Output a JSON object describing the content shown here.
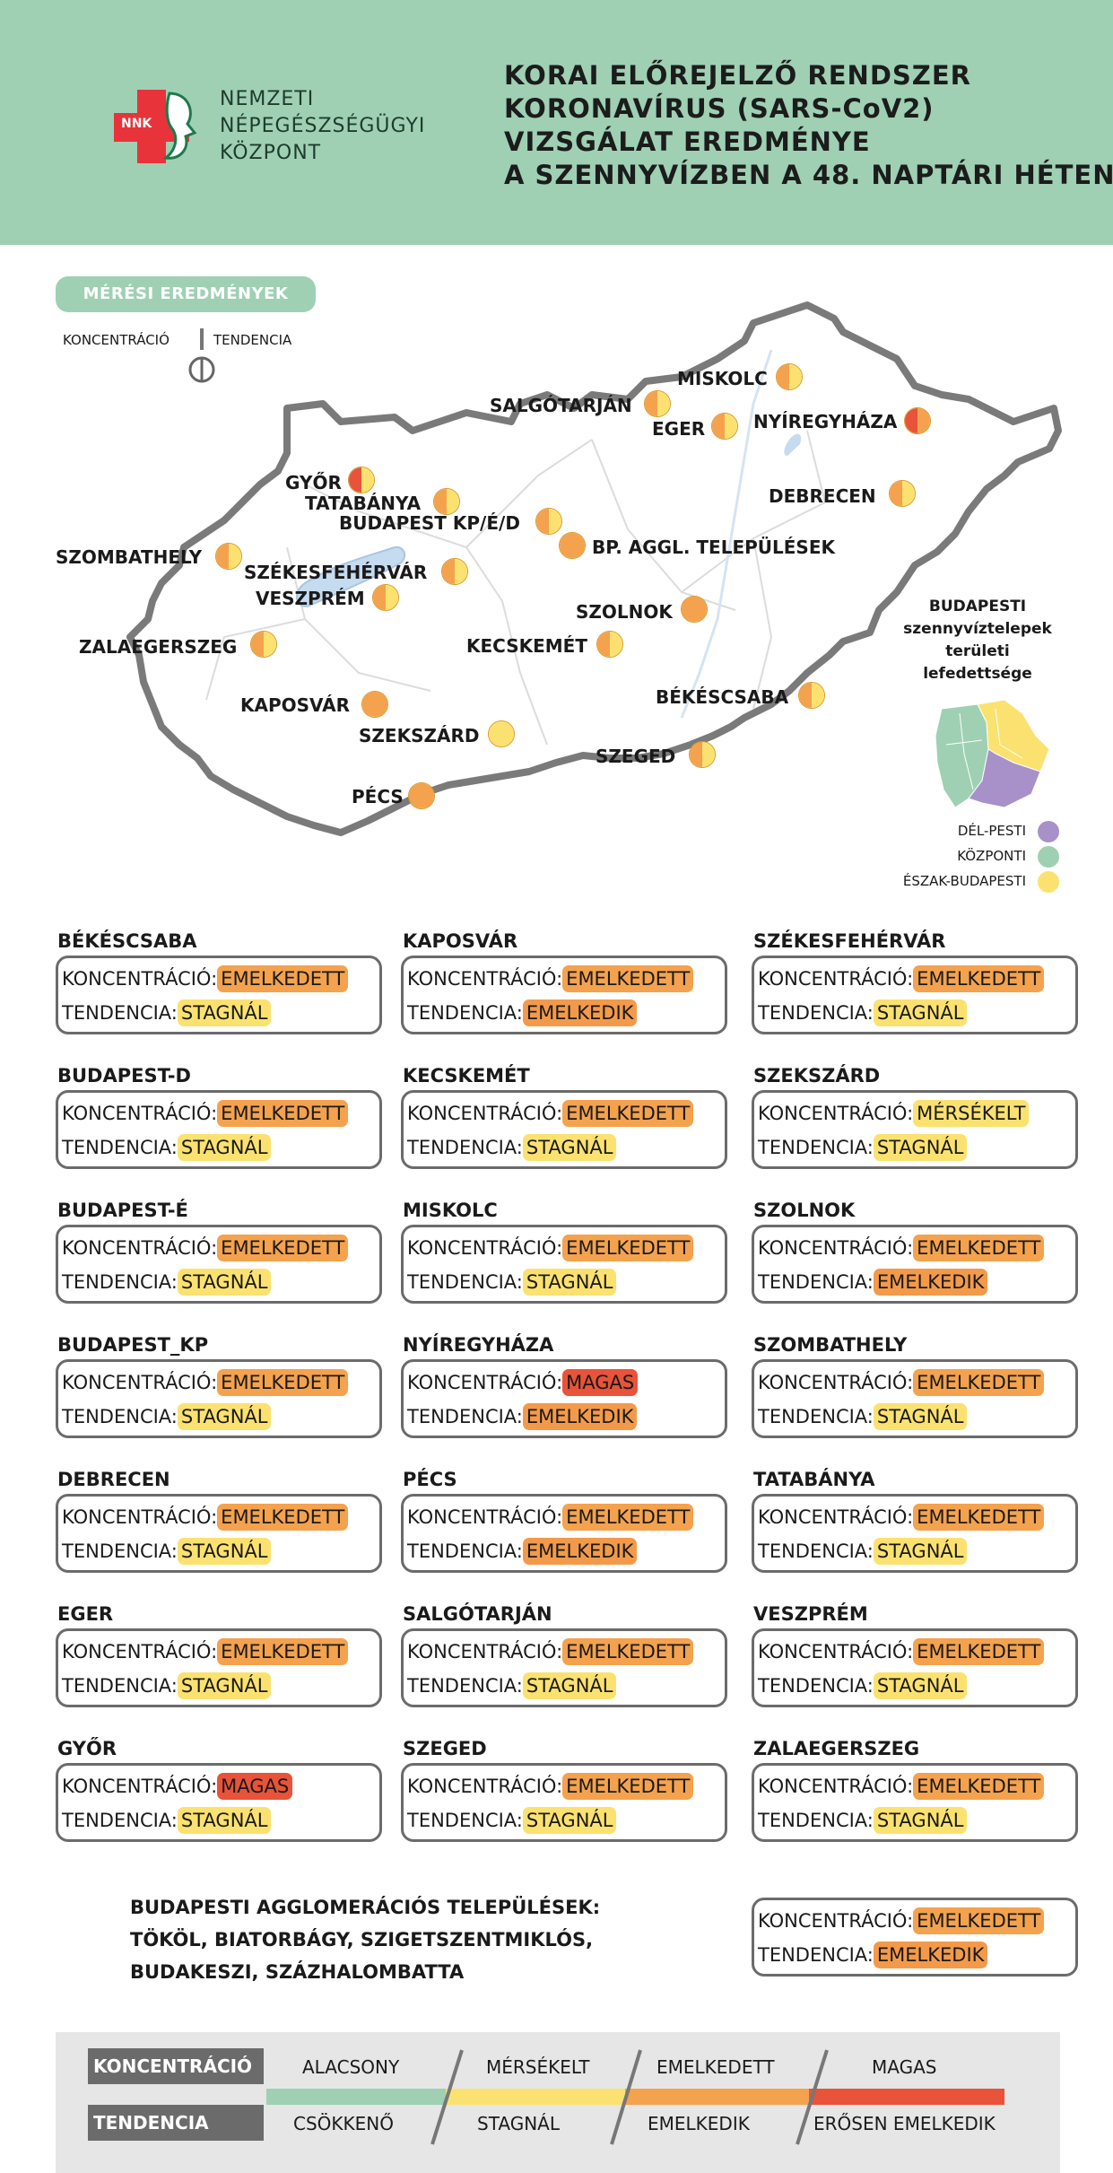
{
  "colors": {
    "header": "#9fd0b4",
    "emelkedett": "#f4a24e",
    "stagnal": "#fbe270",
    "magas": "#e8533a",
    "alacsony": "#9fd0b4",
    "del_pesti": "#a791c8",
    "kozponti": "#9fd0b4",
    "eszak_budapesti": "#fbe270"
  },
  "header": {
    "logo_badge": "NNK",
    "logo_lines": [
      "NEMZETI",
      "NÉPEGÉSZSÉGÜGYI",
      "KÖZPONT"
    ],
    "title_lines": [
      "KORAI ELŐREJELZŐ RENDSZER",
      "KORONAVÍRUS (SARS-CoV2)",
      "VIZSGÁLAT EREDMÉNYE",
      "A SZENNYVÍZBEN A 48. NAPTÁRI HÉTEN"
    ]
  },
  "map": {
    "section_label": "MÉRÉSI EREDMÉNYEK",
    "key_left": "KONCENTRÁCIÓ",
    "key_right": "TENDENCIA",
    "cities": [
      {
        "name": "MISKOLC",
        "left": "emelkedett",
        "right": "stagnal"
      },
      {
        "name": "SALGÓTARJÁN",
        "left": "emelkedett",
        "right": "stagnal"
      },
      {
        "name": "EGER",
        "left": "emelkedett",
        "right": "stagnal"
      },
      {
        "name": "NYÍREGYHÁZA",
        "left": "magas",
        "right": "emelkedett"
      },
      {
        "name": "GYŐR",
        "left": "magas",
        "right": "stagnal"
      },
      {
        "name": "TATABÁNYA",
        "left": "emelkedett",
        "right": "stagnal"
      },
      {
        "name": "DEBRECEN",
        "left": "emelkedett",
        "right": "stagnal"
      },
      {
        "name": "BUDAPEST KP/É/D",
        "left": "emelkedett",
        "right": "stagnal"
      },
      {
        "name": "BP. AGGL. TELEPÜLÉSEK",
        "left": "emelkedett",
        "right": "emelkedett"
      },
      {
        "name": "SZOMBATHELY",
        "left": "emelkedett",
        "right": "stagnal"
      },
      {
        "name": "SZÉKESFEHÉRVÁR",
        "left": "emelkedett",
        "right": "stagnal"
      },
      {
        "name": "VESZPRÉM",
        "left": "emelkedett",
        "right": "stagnal"
      },
      {
        "name": "SZOLNOK",
        "left": "emelkedett",
        "right": "emelkedett"
      },
      {
        "name": "ZALAEGERSZEG",
        "left": "emelkedett",
        "right": "stagnal"
      },
      {
        "name": "KECSKEMÉT",
        "left": "emelkedett",
        "right": "stagnal"
      },
      {
        "name": "BÉKÉSCSABA",
        "left": "emelkedett",
        "right": "stagnal"
      },
      {
        "name": "KAPOSVÁR",
        "left": "emelkedett",
        "right": "emelkedett"
      },
      {
        "name": "SZEKSZÁRD",
        "left": "stagnal",
        "right": "stagnal"
      },
      {
        "name": "SZEGED",
        "left": "emelkedett",
        "right": "stagnal"
      },
      {
        "name": "PÉCS",
        "left": "emelkedett",
        "right": "emelkedett"
      }
    ],
    "bp_legend": {
      "title_lines": [
        "BUDAPESTI",
        "szennyvíztelepek",
        "területi",
        "lefedettsége"
      ],
      "items": [
        "DÉL-PESTI",
        "KÖZPONTI",
        "ÉSZAK-BUDAPESTI"
      ]
    }
  },
  "cards_labels": {
    "concentration": "KONCENTRÁCIÓ:",
    "trend": "TENDENCIA:"
  },
  "cards": [
    {
      "title": "BÉKÉSCSABA",
      "conc": "EMELKEDETT",
      "trend": "STAGNÁL"
    },
    {
      "title": "KAPOSVÁR",
      "conc": "EMELKEDETT",
      "trend": "EMELKEDIK"
    },
    {
      "title": "SZÉKESFEHÉRVÁR",
      "conc": "EMELKEDETT",
      "trend": "STAGNÁL"
    },
    {
      "title": "BUDAPEST-D",
      "conc": "EMELKEDETT",
      "trend": "STAGNÁL"
    },
    {
      "title": "KECSKEMÉT",
      "conc": "EMELKEDETT",
      "trend": "STAGNÁL"
    },
    {
      "title": "SZEKSZÁRD",
      "conc": "MÉRSÉKELT",
      "trend": "STAGNÁL"
    },
    {
      "title": "BUDAPEST-É",
      "conc": "EMELKEDETT",
      "trend": "STAGNÁL"
    },
    {
      "title": "MISKOLC",
      "conc": "EMELKEDETT",
      "trend": "STAGNÁL"
    },
    {
      "title": "SZOLNOK",
      "conc": "EMELKEDETT",
      "trend": "EMELKEDIK"
    },
    {
      "title": "BUDAPEST_KP",
      "conc": "EMELKEDETT",
      "trend": "STAGNÁL"
    },
    {
      "title": "NYÍREGYHÁZA",
      "conc": "MAGAS",
      "trend": "EMELKEDIK"
    },
    {
      "title": "SZOMBATHELY",
      "conc": "EMELKEDETT",
      "trend": "STAGNÁL"
    },
    {
      "title": "DEBRECEN",
      "conc": "EMELKEDETT",
      "trend": "STAGNÁL"
    },
    {
      "title": "PÉCS",
      "conc": "EMELKEDETT",
      "trend": "EMELKEDIK"
    },
    {
      "title": "TATABÁNYA",
      "conc": "EMELKEDETT",
      "trend": "STAGNÁL"
    },
    {
      "title": "EGER",
      "conc": "EMELKEDETT",
      "trend": "STAGNÁL"
    },
    {
      "title": "SALGÓTARJÁN",
      "conc": "EMELKEDETT",
      "trend": "STAGNÁL"
    },
    {
      "title": "VESZPRÉM",
      "conc": "EMELKEDETT",
      "trend": "STAGNÁL"
    },
    {
      "title": "GYŐR",
      "conc": "MAGAS",
      "trend": "STAGNÁL"
    },
    {
      "title": "SZEGED",
      "conc": "EMELKEDETT",
      "trend": "STAGNÁL"
    },
    {
      "title": "ZALAEGERSZEG",
      "conc": "EMELKEDETT",
      "trend": "STAGNÁL"
    }
  ],
  "aggl": {
    "lines": [
      "BUDAPESTI AGGLOMERÁCIÓS TELEPÜLÉSEK:",
      "TÖKÖL, BIATORBÁGY, SZIGETSZENTMIKLÓS,",
      "BUDAKESZI, SZÁZHALOMBATTA"
    ],
    "conc": "EMELKEDETT",
    "trend": "EMELKEDIK"
  },
  "legend": {
    "conc_label": "KONCENTRÁCIÓ",
    "trend_label": "TENDENCIA",
    "conc_levels": [
      "ALACSONY",
      "MÉRSÉKELT",
      "EMELKEDETT",
      "MAGAS"
    ],
    "trend_levels": [
      "CSÖKKENŐ",
      "STAGNÁL",
      "EMELKEDIK",
      "ERŐSEN EMELKEDIK"
    ]
  }
}
